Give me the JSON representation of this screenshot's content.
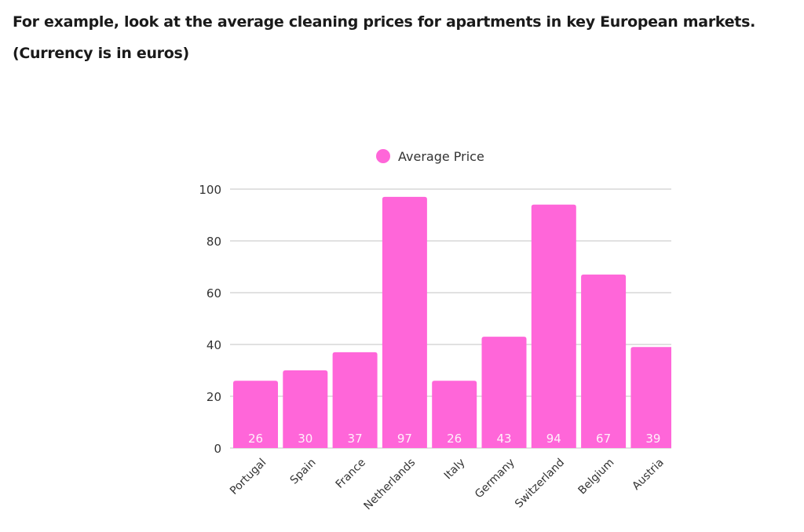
{
  "text": {
    "line1": "For example, look at the average cleaning prices for apartments in key European markets.",
    "line2": "(Currency is in euros)"
  },
  "chart_data": {
    "type": "bar",
    "categories": [
      "Portugal",
      "Spain",
      "France",
      "Netherlands",
      "Italy",
      "Germany",
      "Switzerland",
      "Belgium",
      "Austria"
    ],
    "series": [
      {
        "name": "Average Price",
        "values": [
          26,
          30,
          37,
          97,
          26,
          43,
          94,
          67,
          39
        ],
        "color": "#ff66d9"
      }
    ],
    "ylim": [
      0,
      100
    ],
    "yticks": [
      0,
      20,
      40,
      60,
      80,
      100
    ],
    "grid": true,
    "legend": "top",
    "data_labels": true
  }
}
